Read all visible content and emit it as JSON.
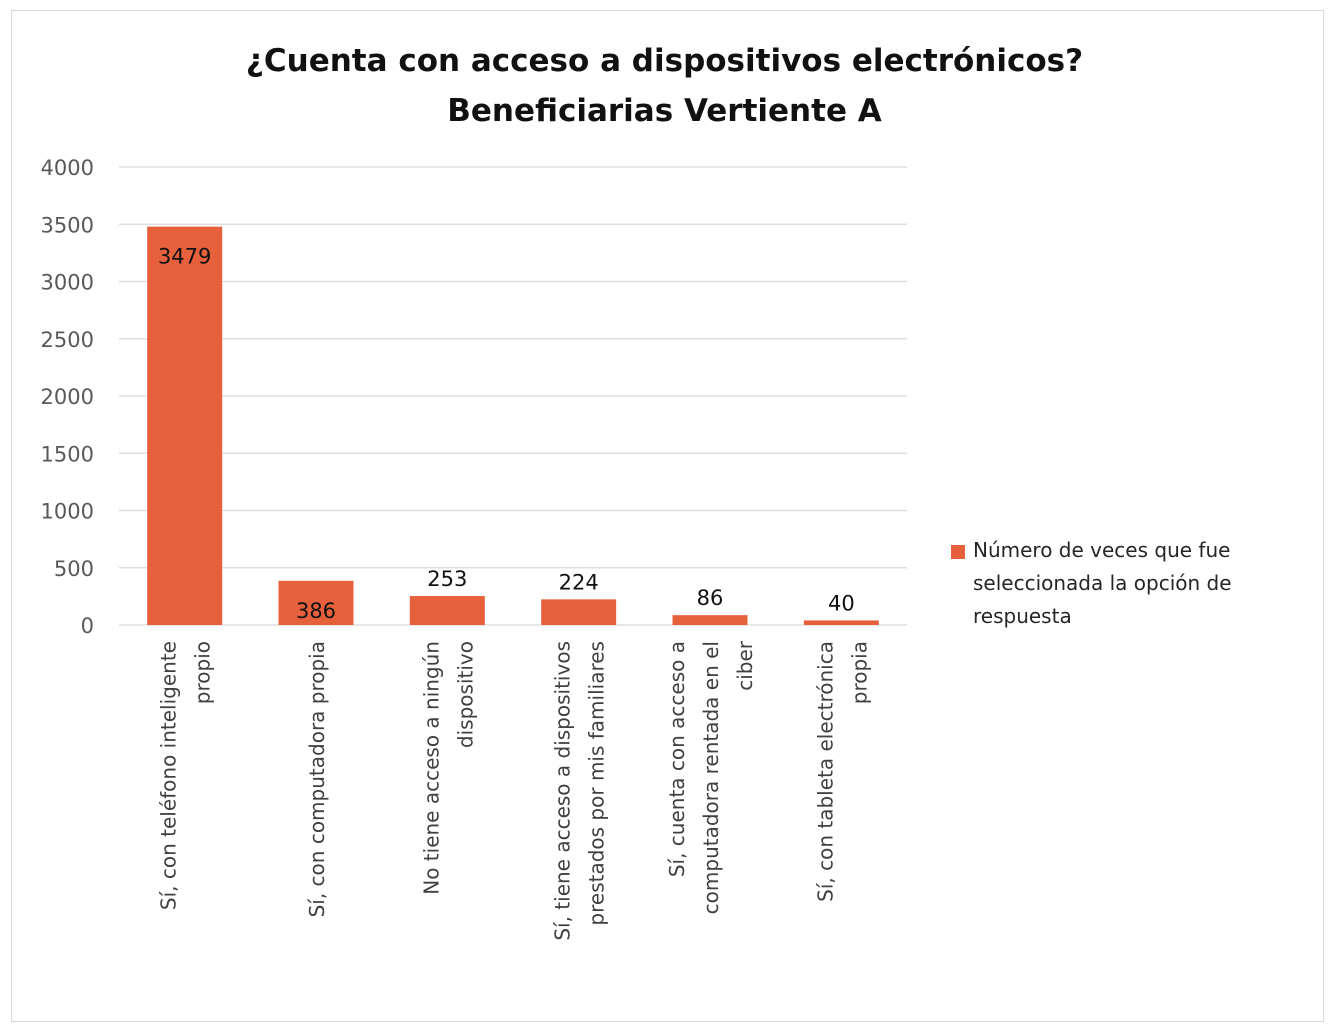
{
  "chart_data": {
    "type": "bar",
    "title_lines": [
      "¿Cuenta con acceso a dispositivos electrónicos?",
      "Beneficiarias Vertiente A"
    ],
    "categories": [
      [
        "Sí, con teléfono inteligente",
        "propio"
      ],
      [
        "Sí, con computadora propia"
      ],
      [
        "No tiene acceso a ningún",
        "dispositivo"
      ],
      [
        "Sí, tiene acceso a dispositivos",
        "prestados por mis familiares"
      ],
      [
        "Sí, cuenta con acceso a",
        "computadora rentada en el",
        "ciber"
      ],
      [
        "Sí, con tableta electrónica",
        "propia"
      ]
    ],
    "series": [
      {
        "name": "Número de veces que fue seleccionada la opción de respuesta",
        "legend_lines": [
          "Número de veces que fue",
          "seleccionada la opción de",
          "respuesta"
        ],
        "values": [
          3479,
          386,
          253,
          224,
          86,
          40
        ],
        "color": "#e5603b"
      }
    ],
    "ylim": [
      0,
      4000
    ],
    "yticks": [
      0,
      500,
      1000,
      1500,
      2000,
      2500,
      3000,
      3500,
      4000
    ],
    "grid": true,
    "legend_position": "right",
    "data_labels": true
  }
}
